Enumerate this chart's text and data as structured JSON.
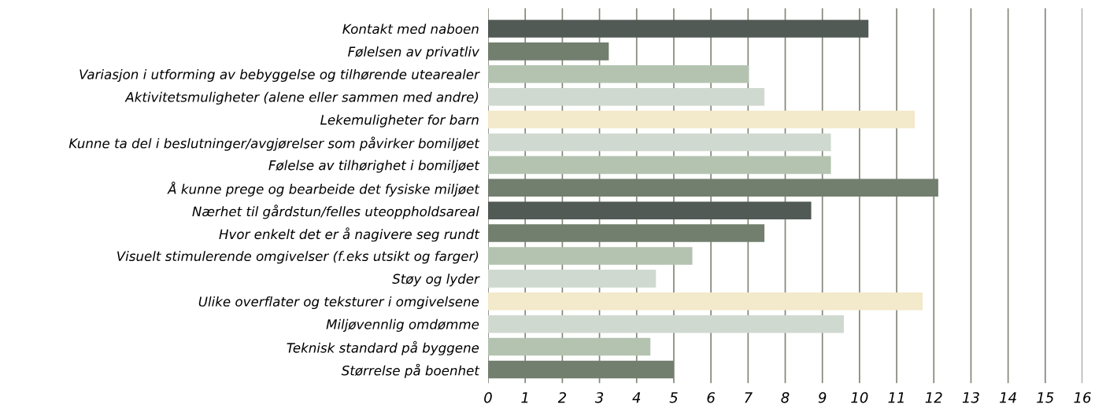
{
  "chart_data": {
    "type": "bar",
    "orientation": "horizontal",
    "categories": [
      "Kontakt med naboen",
      "Følelsen av privatliv",
      "Variasjon i utforming av bebyggelse og tilhørende utearealer",
      "Aktivitetsmuligheter (alene eller sammen med andre)",
      "Lekemuligheter for barn",
      "Kunne ta del i beslutninger/avgjørelser som påvirker bomiljøet",
      "Følelse av tilhørighet i bomiljøet",
      "Å kunne prege og bearbeide det fysiske miljøet",
      "Nærhet til gårdstun/felles uteoppholdsareal",
      "Hvor enkelt det er å nagivere seg rundt",
      "Visuelt stimulerende omgivelser (f.eks utsikt og farger)",
      "Støy og lyder",
      "Ulike overflater og teksturer i omgivelsene",
      "Miljøvennlig omdømme",
      "Teknisk standard på byggene",
      "Størrelse på boenhet"
    ],
    "values": [
      10.24,
      3.25,
      7.02,
      7.44,
      11.49,
      9.23,
      9.23,
      12.12,
      8.7,
      7.44,
      5.5,
      4.52,
      11.7,
      9.58,
      4.37,
      5.0
    ],
    "colors": [
      "#525a56",
      "#737f6e",
      "#b3c3b0",
      "#d0d9cf",
      "#f3e9cb",
      "#d0d9cf",
      "#b3c3b0",
      "#737f6e",
      "#525a56",
      "#737f6e",
      "#b3c3b0",
      "#d0d9cf",
      "#f3e9cb",
      "#d0d9cf",
      "#b3c3b0",
      "#737f6e"
    ],
    "xlim": [
      0,
      16
    ],
    "xticks": [
      0,
      1,
      2,
      3,
      4,
      5,
      6,
      7,
      8,
      9,
      10,
      11,
      12,
      13,
      14,
      15,
      16
    ],
    "grid": "x"
  }
}
